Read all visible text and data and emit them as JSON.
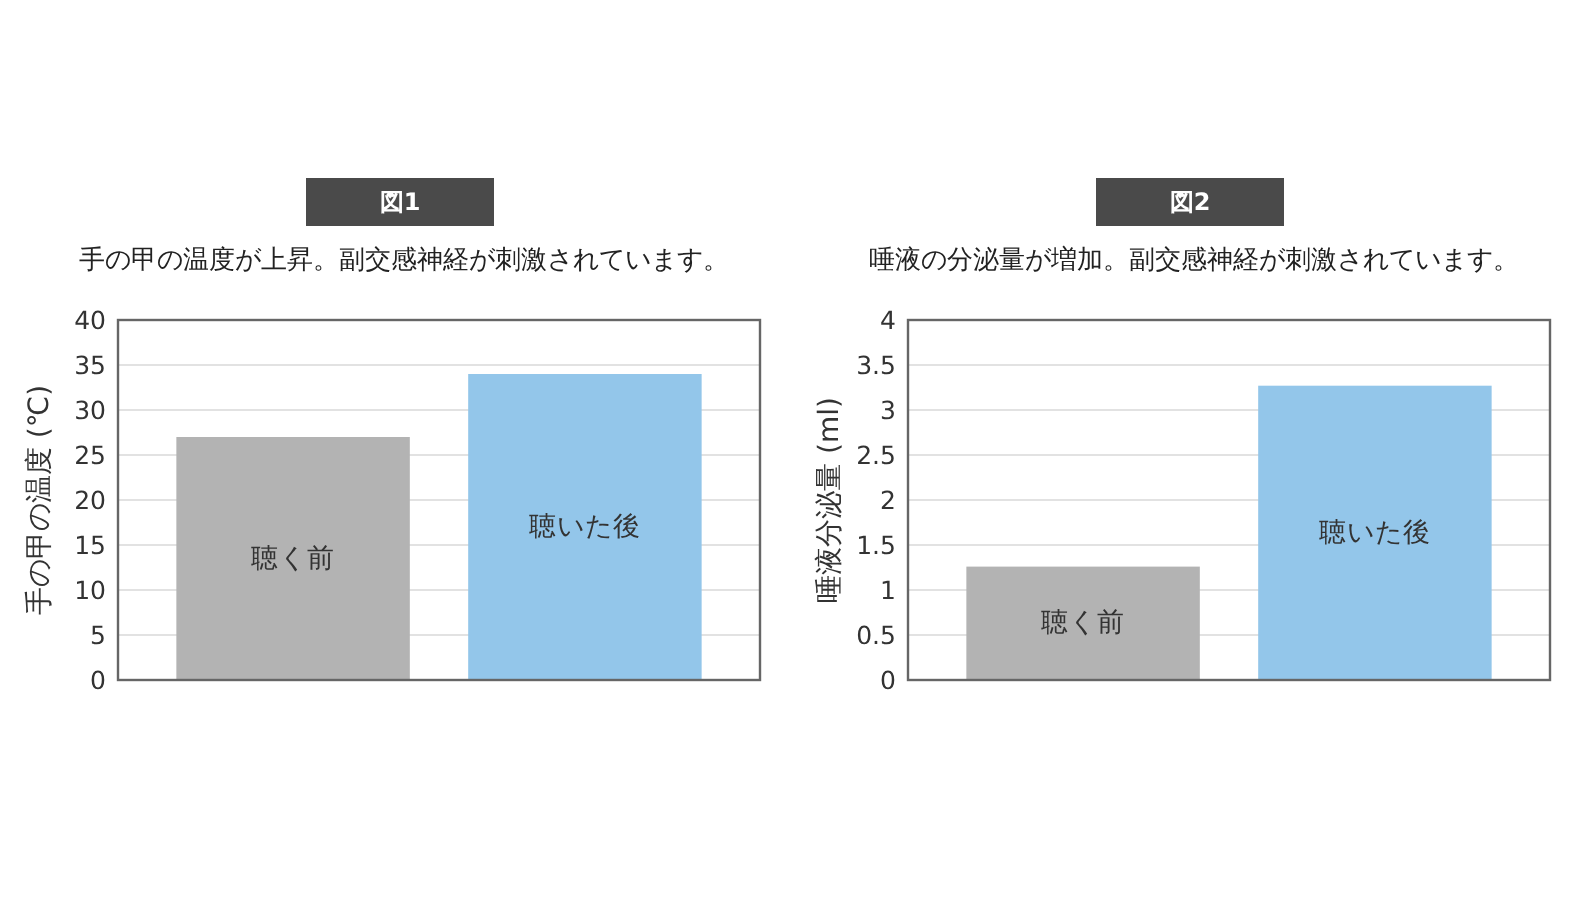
{
  "chart_data": [
    {
      "type": "bar",
      "title": "図1",
      "subtitle": "手の甲の温度が上昇。副交感神経が刺激されています。",
      "ylabel": "手の甲の温度 (℃)",
      "categories": [
        "聴く前",
        "聴いた後"
      ],
      "values": [
        27,
        34
      ],
      "colors": [
        "#b3b3b3",
        "#93c6ea"
      ],
      "ylim": [
        0,
        40
      ],
      "yticks": [
        0,
        5,
        10,
        15,
        20,
        25,
        30,
        35,
        40
      ],
      "grid": "y"
    },
    {
      "type": "bar",
      "title": "図2",
      "subtitle": "唾液の分泌量が増加。副交感神経が刺激されています。",
      "ylabel": "唾液分泌量 (ml)",
      "categories": [
        "聴く前",
        "聴いた後"
      ],
      "values": [
        1.26,
        3.27
      ],
      "colors": [
        "#b3b3b3",
        "#93c6ea"
      ],
      "ylim": [
        0,
        4
      ],
      "yticks": [
        0,
        0.5,
        1,
        1.5,
        2,
        2.5,
        3,
        3.5,
        4
      ],
      "grid": "y"
    }
  ]
}
